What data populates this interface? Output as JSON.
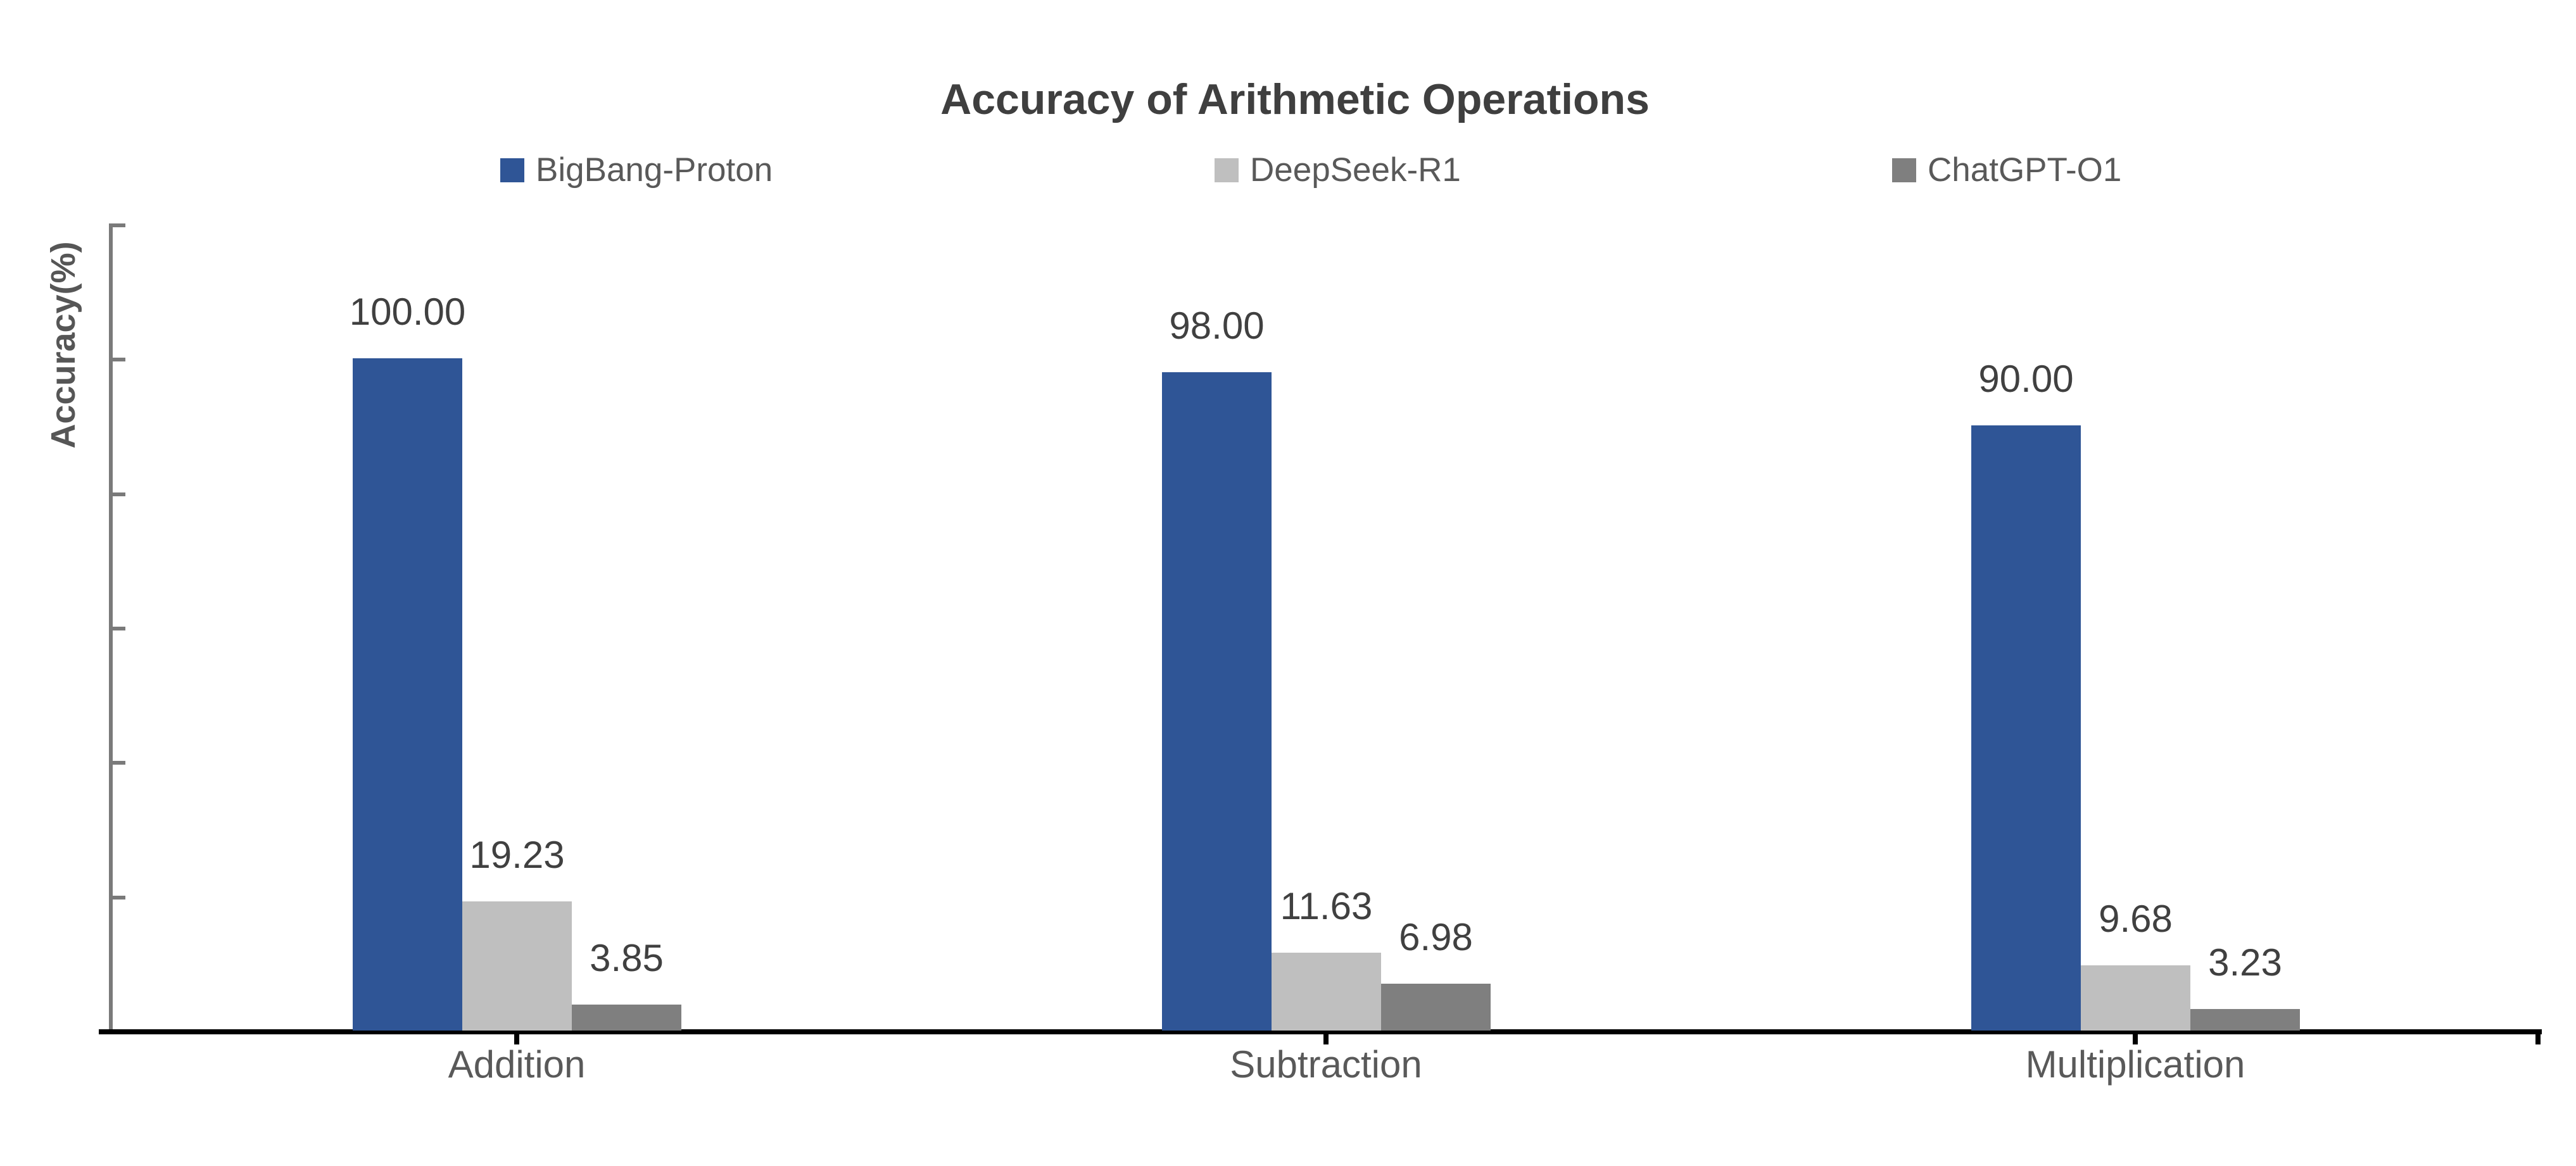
{
  "chart_data": {
    "type": "bar",
    "title": "Accuracy of Arithmetic Operations",
    "ylabel": "Accuracy(%)",
    "xlabel": "",
    "categories": [
      "Addition",
      "Subtraction",
      "Multiplication"
    ],
    "series": [
      {
        "name": "BigBang-Proton",
        "color": "#2F5596",
        "values": [
          100.0,
          98.0,
          90.0
        ],
        "value_labels": [
          "100.00",
          "98.00",
          "90.00"
        ]
      },
      {
        "name": "DeepSeek-R1",
        "color": "#BFBFBF",
        "values": [
          19.23,
          11.63,
          9.68
        ],
        "value_labels": [
          "19.23",
          "11.63",
          "9.68"
        ]
      },
      {
        "name": "ChatGPT-O1",
        "color": "#7F7F7F",
        "values": [
          3.85,
          6.98,
          3.23
        ],
        "value_labels": [
          "3.85",
          "6.98",
          "3.23"
        ]
      }
    ],
    "ylim": [
      0,
      120
    ],
    "y_major_unit": 20,
    "y_tick_labels_visible": false,
    "grid": false,
    "legend_position": "top",
    "data_labels_visible": true
  },
  "colors": {
    "background": "#FFFFFF",
    "title_text": "#3F3F3F",
    "data_label_text": "#404040",
    "category_label_text": "#595959",
    "legend_text": "#595959",
    "y_axis_line": "#7A7A7A",
    "x_axis_line": "#000000"
  }
}
